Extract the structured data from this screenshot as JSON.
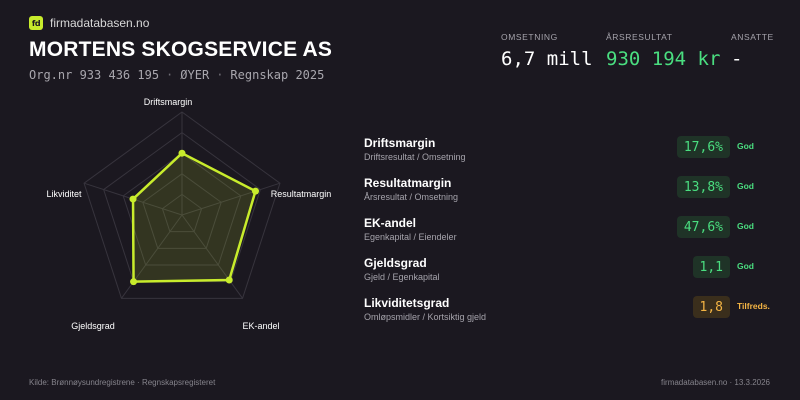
{
  "brand": {
    "logo_text": "fd",
    "name": "firmadatabasen.no",
    "accent": "#c8ec2c"
  },
  "company": {
    "name": "MORTENS SKOGSERVICE AS",
    "org_nr": "Org.nr 933 436 195",
    "location": "ØYER",
    "period": "Regnskap 2025",
    "separator": "·"
  },
  "kpis": [
    {
      "label": "OMSETNING",
      "value": "6,7 mill",
      "color": "white"
    },
    {
      "label": "ÅRSRESULTAT",
      "value": "930 194 kr",
      "color": "green"
    },
    {
      "label": "ANSATTE",
      "value": "-",
      "color": "white"
    }
  ],
  "radar": {
    "axes": [
      "Driftsmargin",
      "Resultatmargin",
      "EK-andel",
      "Gjeldsgrad",
      "Likviditet"
    ],
    "scores": [
      0.6,
      0.75,
      0.78,
      0.8,
      0.5
    ],
    "line_color": "#c8ec2c"
  },
  "metrics": [
    {
      "name": "Driftsmargin",
      "desc": "Driftsresultat / Omsetning",
      "value": "17,6%",
      "status": "God",
      "tone": "good"
    },
    {
      "name": "Resultatmargin",
      "desc": "Årsresultat / Omsetning",
      "value": "13,8%",
      "status": "God",
      "tone": "good"
    },
    {
      "name": "EK-andel",
      "desc": "Egenkapital / Eiendeler",
      "value": "47,6%",
      "status": "God",
      "tone": "good"
    },
    {
      "name": "Gjeldsgrad",
      "desc": "Gjeld / Egenkapital",
      "value": "1,1",
      "status": "God",
      "tone": "good"
    },
    {
      "name": "Likviditetsgrad",
      "desc": "Omløpsmidler / Kortsiktig gjeld",
      "value": "1,8",
      "status": "Tilfreds.",
      "tone": "ok"
    }
  ],
  "footer": {
    "source": "Kilde: Brønnøysundregistrene · Regnskapsregisteret",
    "site_date": "firmadatabasen.no · 13.3.2026"
  }
}
